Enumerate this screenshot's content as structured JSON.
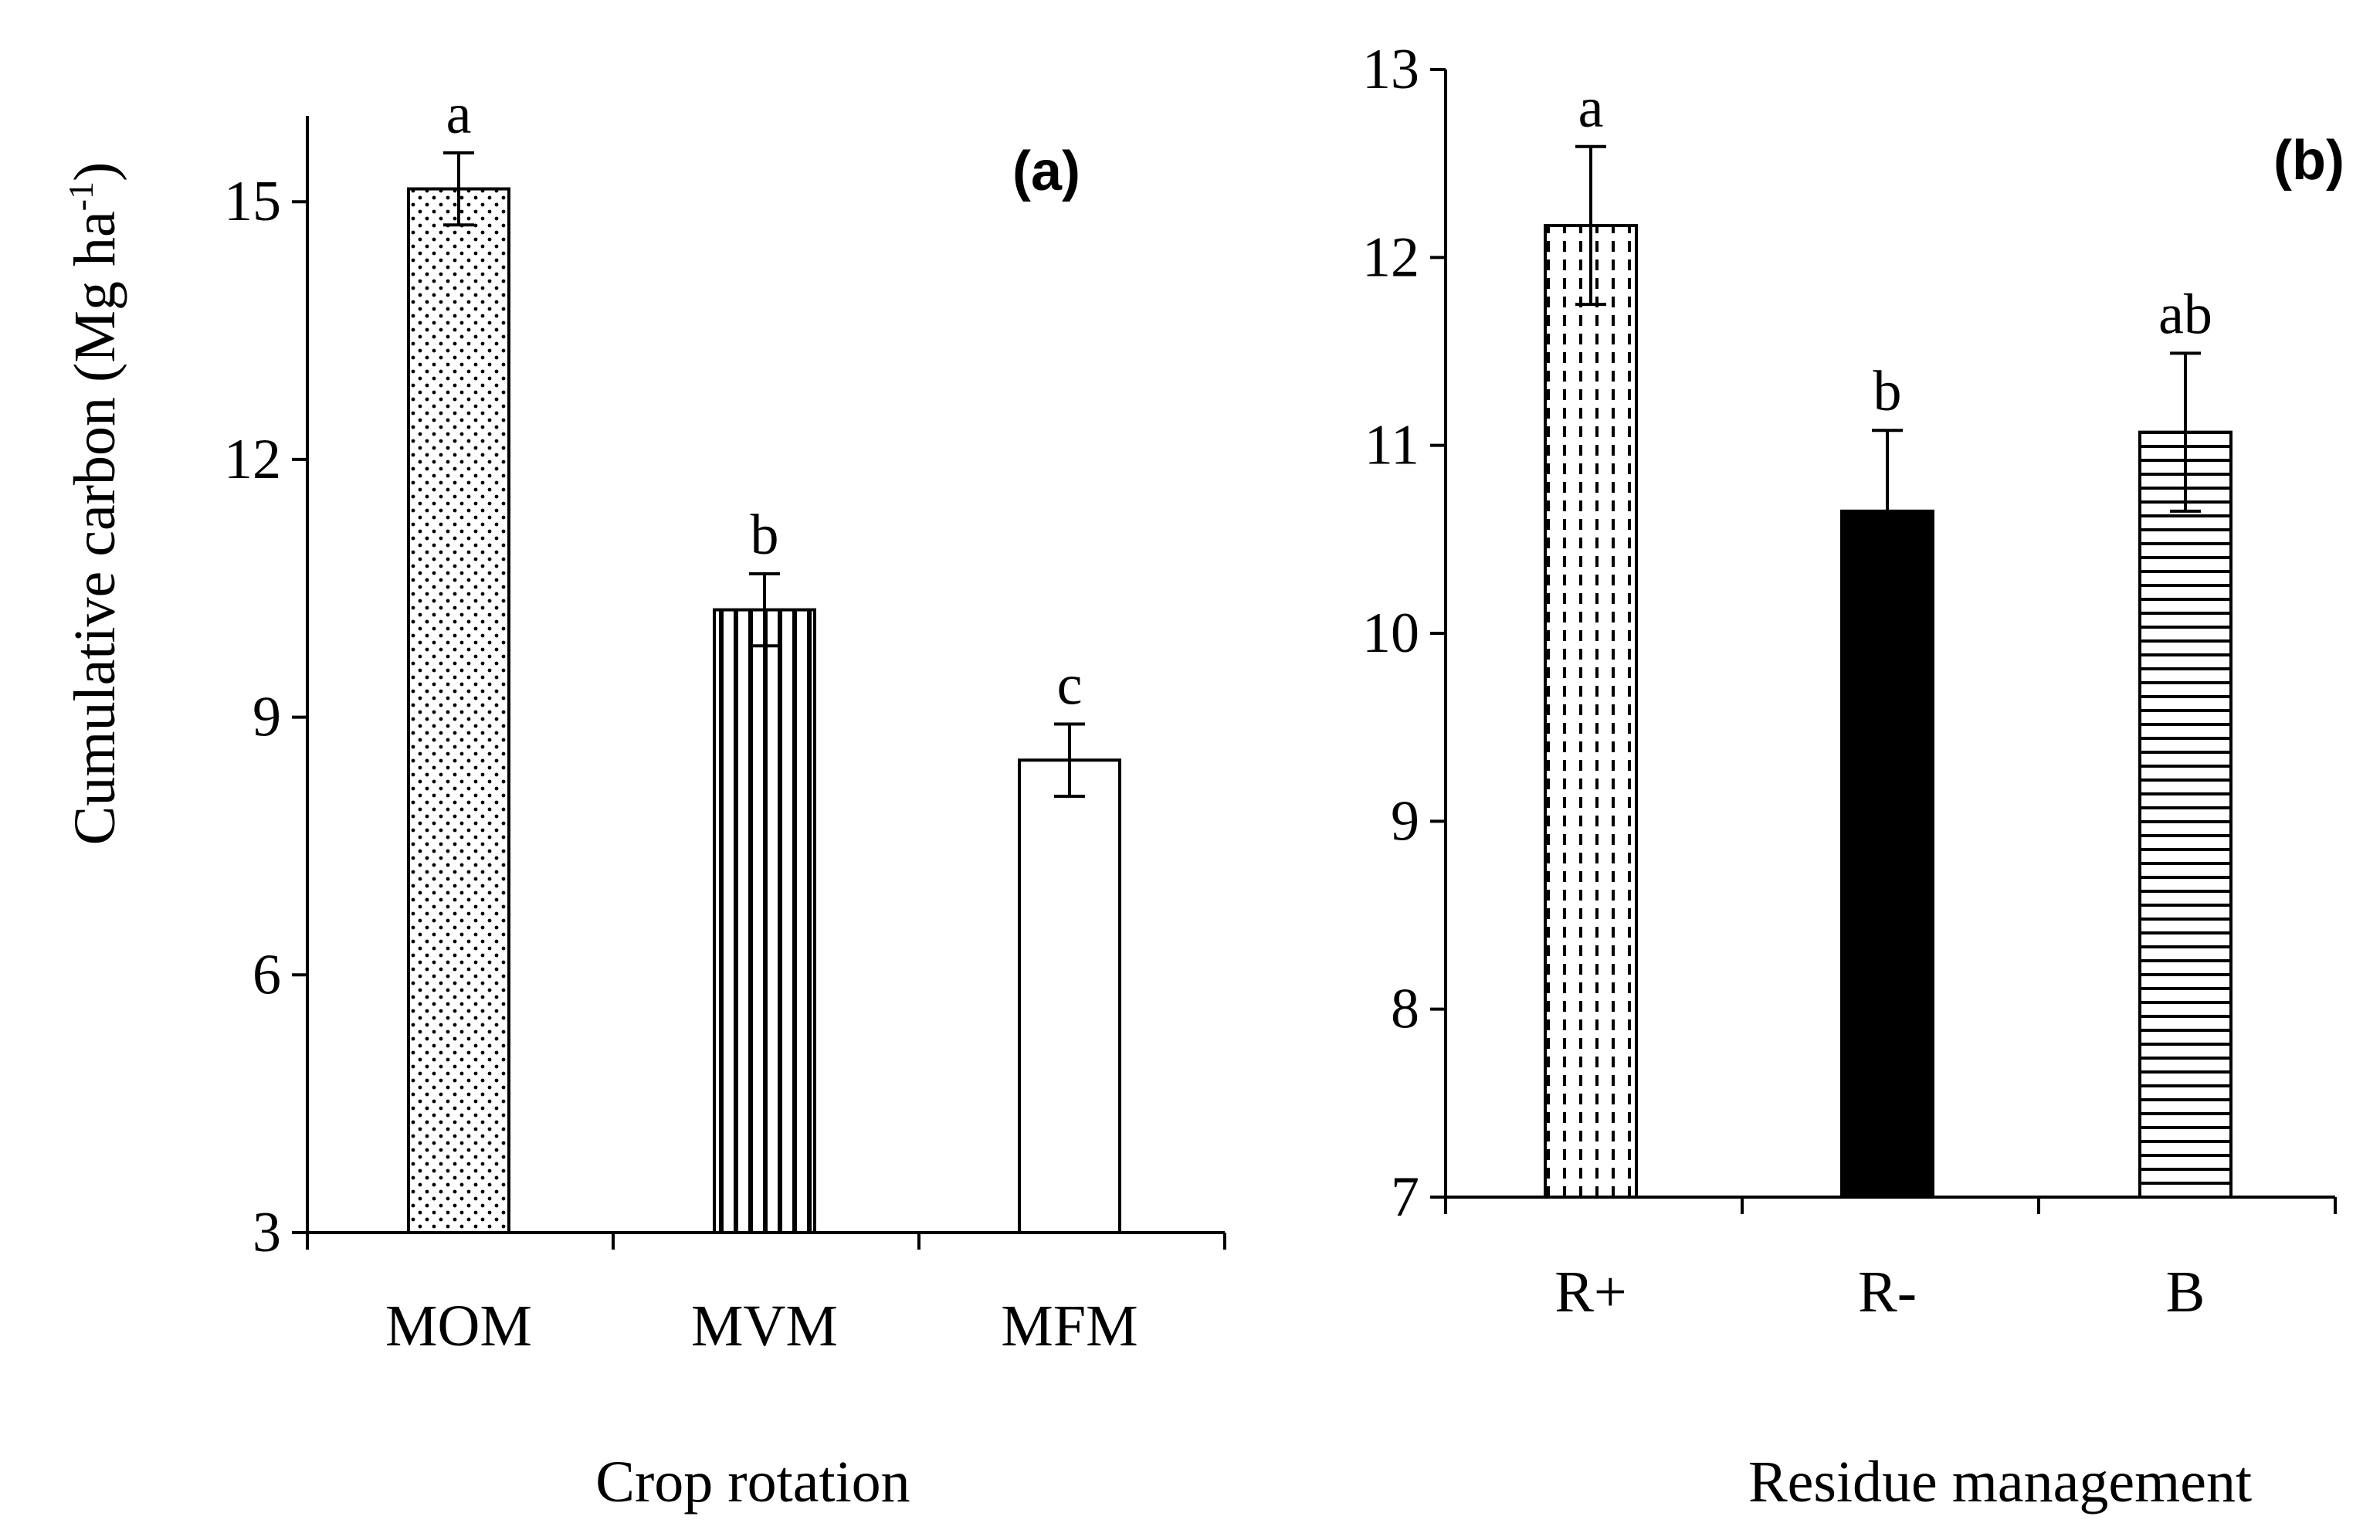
{
  "chart_data": [
    {
      "type": "bar",
      "panel_label": "(a)",
      "xlabel": "Crop rotation",
      "ylabel": "Cumulative carbon (Mg ha",
      "ylabel_sup": "-1",
      "ylabel_close": ")",
      "ylim": [
        3,
        16
      ],
      "yticks": [
        "3",
        "6",
        "9",
        "12",
        "15"
      ],
      "categories": [
        "MOM",
        "MVM",
        "MFM"
      ],
      "values": [
        15.15,
        10.25,
        8.5
      ],
      "errors": [
        0.42,
        0.42,
        0.42
      ],
      "letters": [
        "a",
        "b",
        "c"
      ],
      "patterns": [
        "dots",
        "vlines",
        "none"
      ]
    },
    {
      "type": "bar",
      "panel_label": "(b)",
      "xlabel": "Residue management",
      "ylabel": "",
      "ylim": [
        7,
        13
      ],
      "yticks": [
        "7",
        "8",
        "9",
        "10",
        "11",
        "12",
        "13"
      ],
      "categories": [
        "R+",
        "R-",
        "B"
      ],
      "values": [
        12.17,
        10.65,
        11.07
      ],
      "errors": [
        0.42,
        0.43,
        0.42
      ],
      "letters": [
        "a",
        "b",
        "ab"
      ],
      "patterns": [
        "dashed-vlines",
        "solid",
        "hlines"
      ]
    }
  ],
  "colors": {
    "ink": "#000000",
    "paper": "#ffffff"
  }
}
